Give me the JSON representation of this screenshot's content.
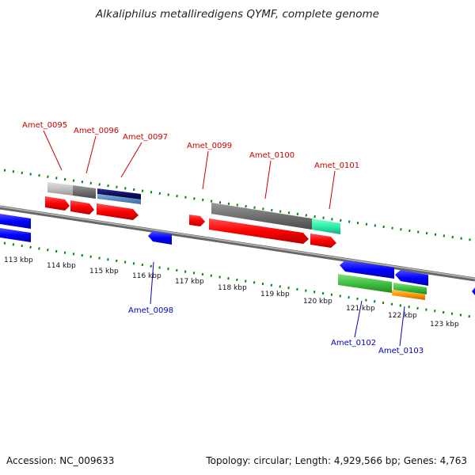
{
  "title": "Alkaliphilus metalliredigens QYMF, complete genome",
  "accession": "Accession: NC_009633",
  "info": "Topology: circular; Length: 4,929,566 bp; Genes: 4,763",
  "ruler": [
    "113 kbp",
    "114 kbp",
    "115 kbp",
    "116 kbp",
    "117 kbp",
    "118 kbp",
    "119 kbp",
    "120 kbp",
    "121 kbp",
    "122 kbp",
    "123 kbp"
  ],
  "labels_top": [
    "Amet_0095",
    "Amet_0096",
    "Amet_0097",
    "Amet_0099",
    "Amet_0100",
    "Amet_0101"
  ],
  "labels_bottom": [
    "Amet_0098",
    "Amet_0102",
    "Amet_0103"
  ],
  "colors": {
    "forward_cds": "#ff0000",
    "reverse_cds": "#0000ff",
    "top_label": "#cc0000",
    "bottom_label": "#0000bb",
    "gc_ticks": "#008800",
    "backbone": "#888888"
  }
}
